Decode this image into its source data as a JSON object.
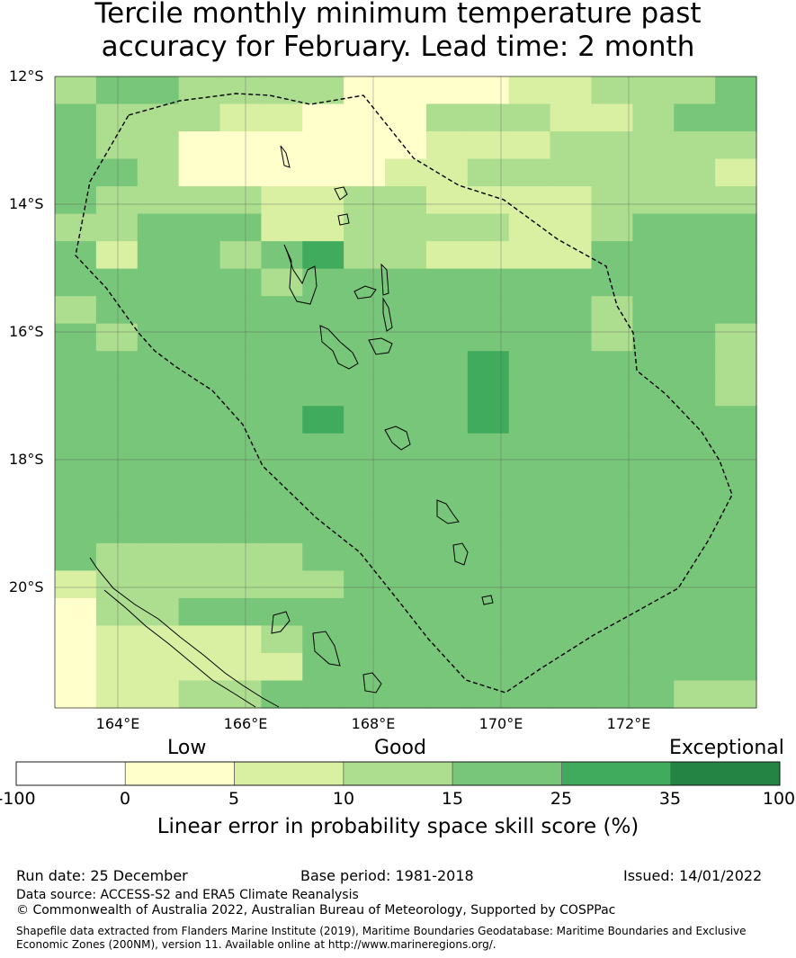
{
  "title_line1": "Tercile monthly minimum temperature past",
  "title_line2": "accuracy for February. Lead time: 2 month",
  "lat_labels": [
    "12°S",
    "14°S",
    "16°S",
    "18°S",
    "20°S"
  ],
  "lon_labels": [
    "164°E",
    "166°E",
    "168°E",
    "170°E",
    "172°E"
  ],
  "skill_categories": [
    "Low",
    "Good",
    "Exceptional"
  ],
  "colorbar": {
    "ticks": [
      "-100",
      "0",
      "5",
      "10",
      "15",
      "25",
      "35",
      "100"
    ],
    "colors": [
      "#ffffff",
      "#ffffcc",
      "#d9f0a3",
      "#addd8e",
      "#78c679",
      "#41ab5d",
      "#238443"
    ],
    "label": "Linear error in probability space skill score (%)"
  },
  "footer": {
    "run_date": "Run date: 25 December",
    "base_period": "Base period: 1981-2018",
    "issued": "Issued: 14/01/2022",
    "data_source": "Data source: ACCESS-S2 and ERA5 Climate Reanalysis",
    "copyright": "© Commonwealth of Australia 2022, Australian Bureau of Meteorology, Supported by COSPPac",
    "shapefile_line1": "Shapefile data extracted from Flanders Marine Institute (2019), Maritime Boundaries Geodatabase: Maritime Boundaries and Exclusive",
    "shapefile_line2": "Economic Zones (200NM), version 11. Available online at http://www.marineregions.org/."
  },
  "grid_colors": {
    "1": "#ffffcc",
    "2": "#d9f0a3",
    "3": "#addd8e",
    "4": "#78c679",
    "5": "#41ab5d"
  },
  "skill_grid": [
    "34433331111223334",
    "43332211133322344",
    "43311111122233333",
    "44311111223333332",
    "43333223322223333",
    "33444223333223444",
    "42443453322224444",
    "44444344444444444",
    "34444444444443444",
    "43444444444443443",
    "44444444445444443",
    "44444444445444443",
    "44444454445444444",
    "44444444444444444",
    "44444444444444444",
    "44444444444444444",
    "44444444444444444",
    "43333344444444444",
    "23333334444444444",
    "13344444444444444",
    "12222344444444444",
    "12222244444444444",
    "12233444444444433"
  ]
}
